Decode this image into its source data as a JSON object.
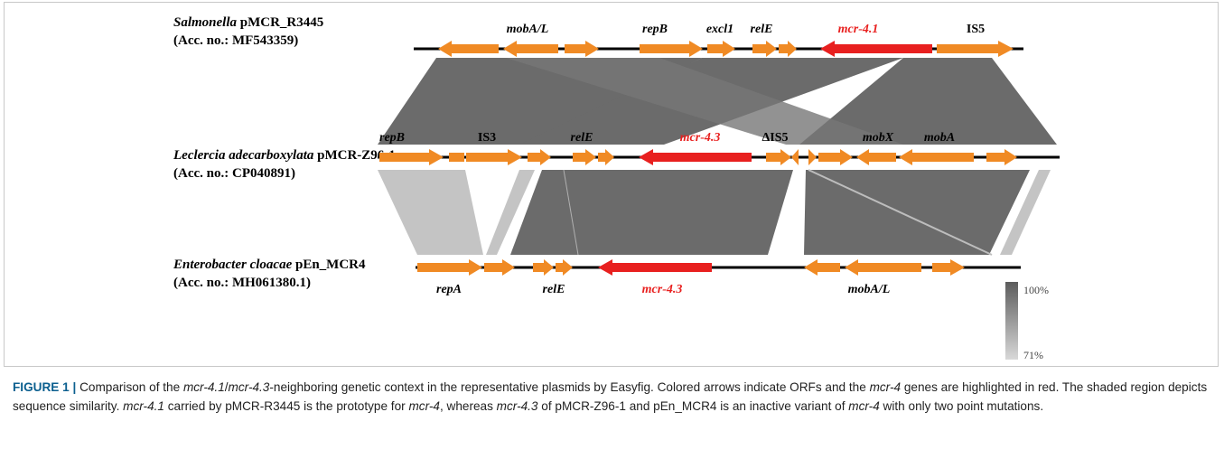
{
  "tracks": [
    {
      "genus": "Salmonella",
      "plasmid": "pMCR_R3445",
      "accession": "(Acc. no.: MF543359)"
    },
    {
      "genus": "Leclercia adecarboxylata",
      "plasmid": "pMCR-Z96-1",
      "accession": "(Acc. no.: CP040891)"
    },
    {
      "genus": "Enterobacter cloacae",
      "plasmid": "pEn_MCR4",
      "accession": "(Acc. no.: MH061380.1)"
    }
  ],
  "gene_labels": {
    "t1_mobAL": "mobA/L",
    "t1_repB": "repB",
    "t1_excl1": "excl1",
    "t1_relE": "relE",
    "t1_mcr": "mcr-4.1",
    "t1_IS5": "IS5",
    "t2_repB": "repB",
    "t2_IS3": "IS3",
    "t2_relE": "relE",
    "t2_mcr": "mcr-4.3",
    "t2_dIS5": "ΔIS5",
    "t2_mobX": "mobX",
    "t2_mobA": "mobA",
    "t3_repA": "repA",
    "t3_relE": "relE",
    "t3_mcr": "mcr-4.3",
    "t3_mobAL": "mobA/L"
  },
  "identity_scale": {
    "max": "100%",
    "min": "71%"
  },
  "colors": {
    "orf": "#f08a24",
    "mcr4": "#e8201f",
    "high_identity": "#6b6b6b",
    "low_identity": "#c4c4c4"
  },
  "caption": {
    "label": "FIGURE 1",
    "separator": "|",
    "segments": [
      {
        "text": "Comparison of the ",
        "italic": false
      },
      {
        "text": "mcr-4.1",
        "italic": true
      },
      {
        "text": "/",
        "italic": false
      },
      {
        "text": "mcr-4.3",
        "italic": true
      },
      {
        "text": "-neighboring genetic context in the representative plasmids by Easyfig. Colored arrows indicate ORFs and the ",
        "italic": false
      },
      {
        "text": "mcr-4",
        "italic": true
      },
      {
        "text": " genes are highlighted in red. The shaded region depicts sequence similarity. ",
        "italic": false
      },
      {
        "text": "mcr-4.1",
        "italic": true
      },
      {
        "text": " carried by pMCR-R3445 is the prototype for ",
        "italic": false
      },
      {
        "text": "mcr-4",
        "italic": true
      },
      {
        "text": ", whereas ",
        "italic": false
      },
      {
        "text": "mcr-4.3",
        "italic": true
      },
      {
        "text": " of pMCR-Z96-1 and pEn_MCR4 is an inactive variant of ",
        "italic": false
      },
      {
        "text": "mcr-4",
        "italic": true
      },
      {
        "text": " with only two point mutations.",
        "italic": false
      }
    ]
  }
}
